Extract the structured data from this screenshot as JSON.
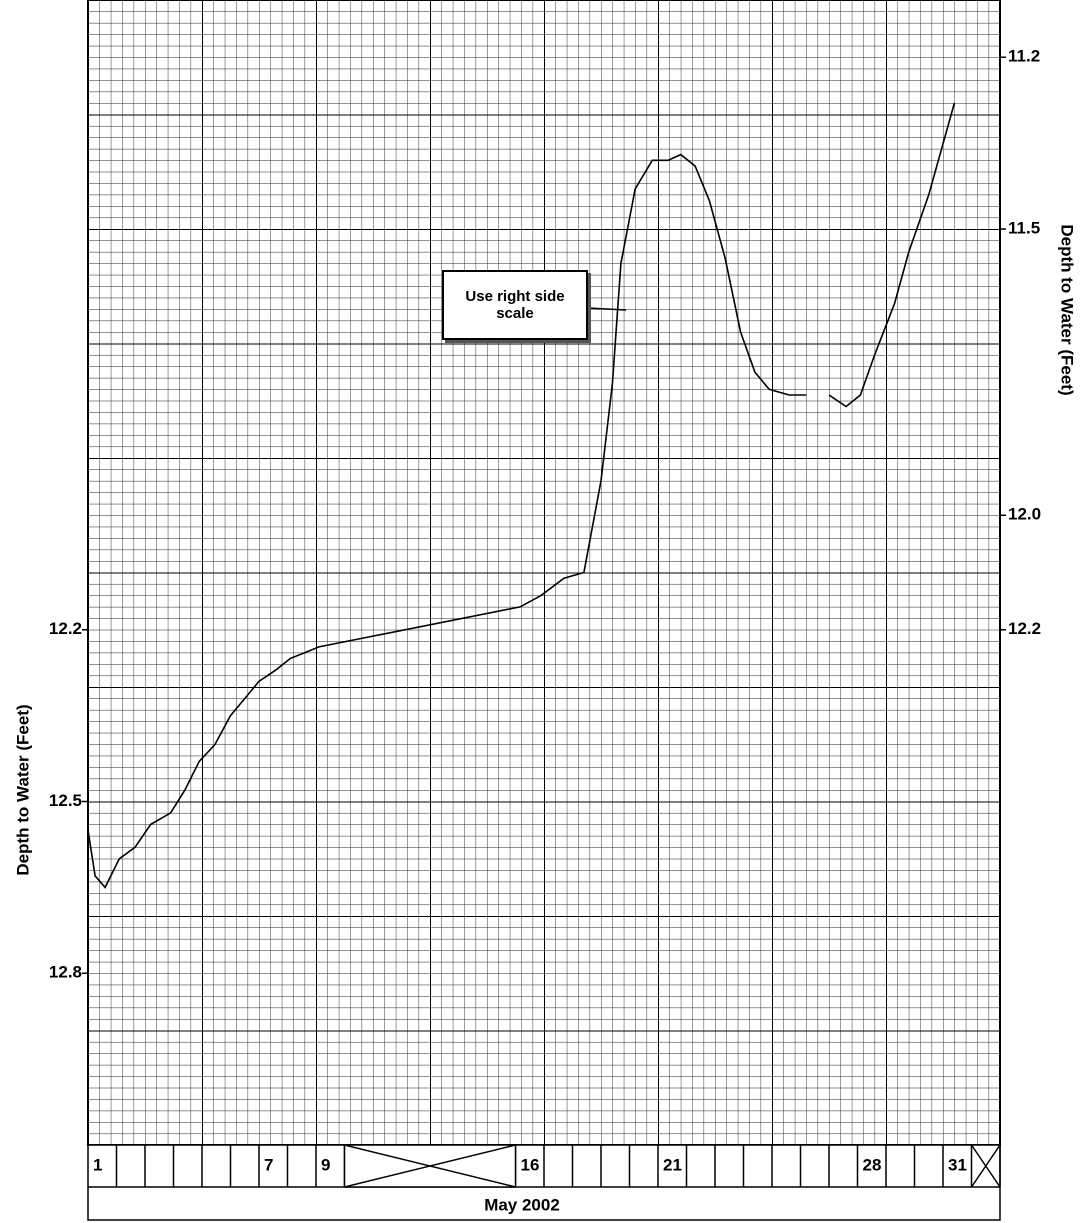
{
  "chart_data": {
    "type": "line",
    "title": "May 2002",
    "y_label": "Depth to Water (Feet)",
    "y2_label": "Depth to Water (Feet)",
    "annotation": "Use right side scale",
    "x": [
      0.5,
      0.75,
      1.1,
      1.6,
      2.15,
      2.7,
      3.4,
      3.9,
      4.4,
      4.96,
      5.5,
      6.0,
      6.5,
      7.1,
      7.6,
      8.1,
      8.6,
      15.66,
      16.4,
      17.2,
      17.9,
      18.5,
      18.9,
      19.2,
      19.7,
      20.3,
      20.85,
      21.3,
      21.8,
      22.3,
      22.85,
      23.4,
      23.9,
      24.4,
      25.1,
      25.7,
      26.0,
      26.5,
      27.1,
      27.6,
      28.1,
      28.8,
      29.3,
      30.0,
      30.9
    ],
    "values": [
      12.55,
      12.63,
      12.65,
      12.6,
      12.58,
      12.54,
      12.52,
      12.48,
      12.43,
      12.4,
      12.35,
      12.32,
      12.29,
      12.27,
      12.25,
      12.24,
      12.23,
      12.16,
      12.14,
      12.11,
      12.1,
      11.94,
      11.77,
      11.56,
      11.43,
      11.38,
      11.38,
      11.37,
      11.39,
      11.45,
      11.55,
      11.68,
      11.75,
      11.78,
      11.79,
      11.79,
      null,
      11.79,
      11.81,
      11.79,
      11.72,
      11.63,
      11.54,
      11.44,
      11.28
    ],
    "color": "#000000",
    "xlim": [
      0.5,
      32.5
    ],
    "xticks": [
      1,
      7,
      9,
      16,
      21,
      28,
      31
    ],
    "ylim": [
      11.1,
      13.1
    ],
    "yticks": [
      12.2,
      12.5,
      12.8
    ],
    "y2lim": [
      11.1,
      13.1
    ],
    "y2ticks": [
      11.2,
      11.5,
      {
        "value": 12.0,
        "label": "12.0"
      },
      12.2
    ],
    "invert_y": true,
    "grid": true
  }
}
